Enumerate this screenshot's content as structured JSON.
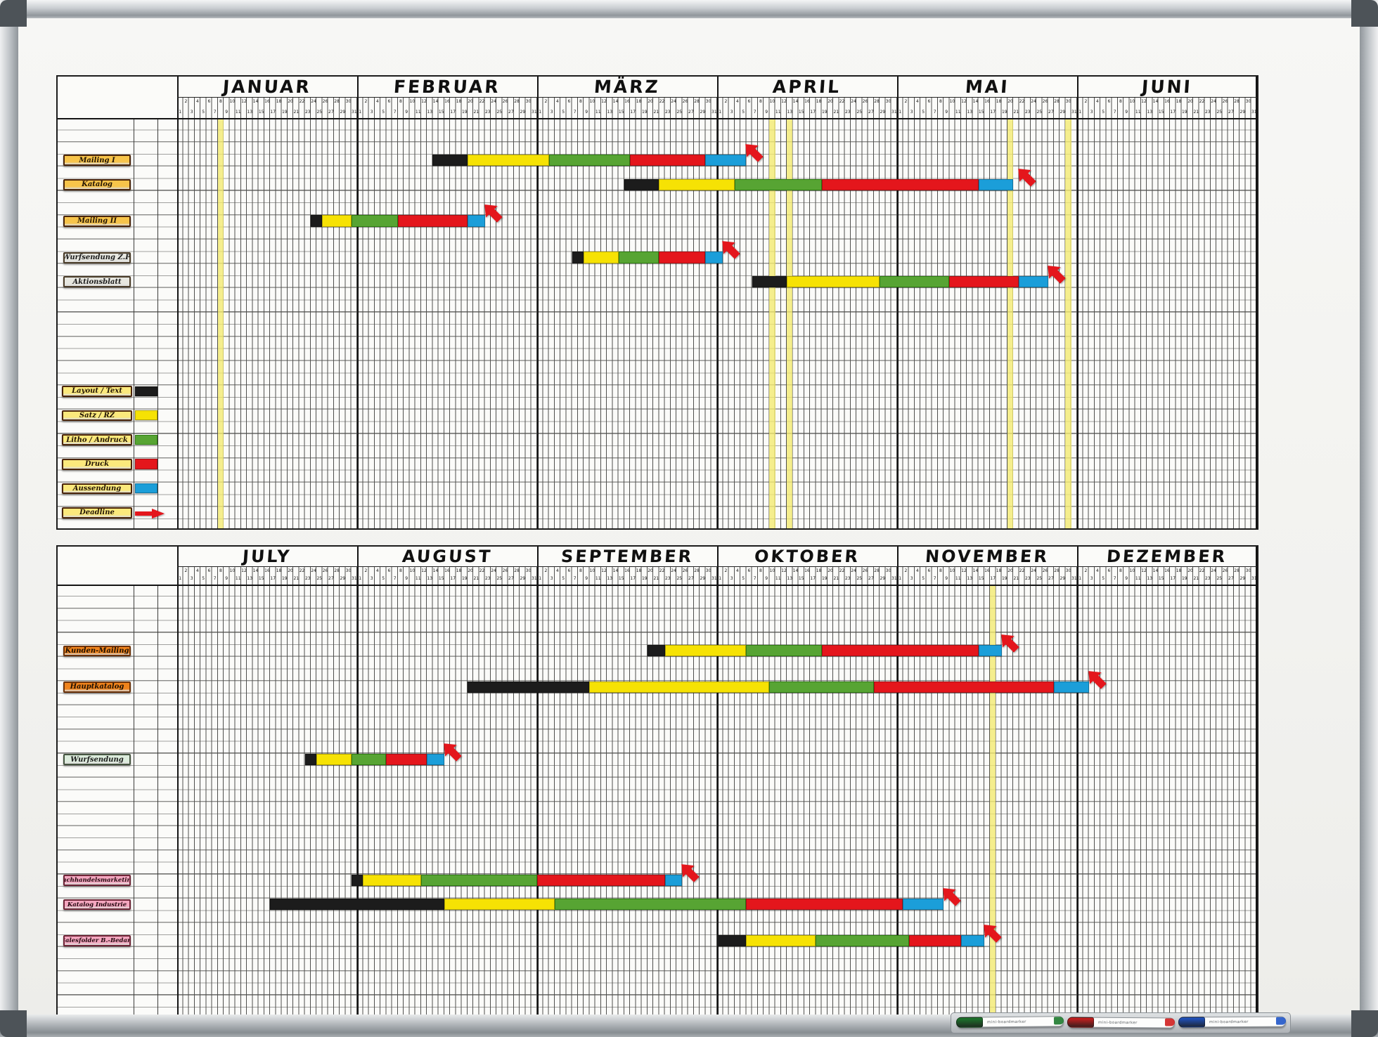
{
  "board": {
    "pens": [
      {
        "accent": "#1d7a2d",
        "label": "mini-boardmarker"
      },
      {
        "accent": "#d01f1f",
        "label": "mini-boardmarker"
      },
      {
        "accent": "#1f55c8",
        "label": "mini-boardmarker"
      }
    ]
  },
  "chart_data": {
    "type": "gantt",
    "description": "Magnetic whiteboard year planner, two half-year Gantt grids; columns are day slots, 31 per month, 0-indexed from the first month of each half",
    "palette": {
      "black": "#1c1c1c",
      "yellow": "#f6e204",
      "green": "#57a433",
      "red": "#e4161c",
      "blue": "#1b9ed9",
      "highlight": "#f3e97d",
      "arrow": "#e4161c"
    },
    "label_colors": {
      "gold": {
        "bg": "#f7c44a",
        "border": "#4a2408",
        "text": "#231505"
      },
      "lightyellow": {
        "bg": "#fbe97c",
        "border": "#4a2408",
        "text": "#231505"
      },
      "gray": {
        "bg": "#e7e7e0",
        "border": "#4a3c28",
        "text": "#1c1c1c"
      },
      "orange": {
        "bg": "#ef831c",
        "border": "#6e3206",
        "text": "#1c1005"
      },
      "mint": {
        "bg": "#dcecdc",
        "border": "#44543f",
        "text": "#1c1c1c"
      },
      "pink": {
        "bg": "#f4a6bf",
        "border": "#6e2436",
        "text": "#230a10"
      }
    },
    "day_numbers": [
      1,
      2,
      3,
      4,
      5,
      6,
      7,
      8,
      9,
      10,
      11,
      12,
      13,
      14,
      15,
      16,
      17,
      18,
      19,
      20,
      21,
      22,
      23,
      24,
      25,
      26,
      27,
      28,
      29,
      30,
      31
    ],
    "charts": [
      {
        "name": "first-half",
        "months": [
          "JANUAR",
          "FEBRUAR",
          "MÄRZ",
          "APRIL",
          "MAI",
          "JUNI"
        ],
        "highlight_cols": [
          7,
          102,
          105,
          143,
          153
        ],
        "rows": [
          {
            "label": "Mailing I",
            "style": "gold",
            "slot": 3,
            "segments": [
              [
                "black",
                44,
                50
              ],
              [
                "yellow",
                50,
                64
              ],
              [
                "green",
                64,
                78
              ],
              [
                "red",
                78,
                91
              ],
              [
                "blue",
                91,
                98
              ]
            ],
            "arrow_col": 98
          },
          {
            "label": "Katalog",
            "style": "gold",
            "slot": 5,
            "segments": [
              [
                "black",
                77,
                83
              ],
              [
                "yellow",
                83,
                96
              ],
              [
                "green",
                96,
                111
              ],
              [
                "red",
                111,
                138
              ],
              [
                "blue",
                138,
                144
              ]
            ],
            "arrow_col": 145
          },
          {
            "label": "Mailing II",
            "style": "gold",
            "slot": 8,
            "segments": [
              [
                "black",
                23,
                25
              ],
              [
                "yellow",
                25,
                30
              ],
              [
                "green",
                30,
                38
              ],
              [
                "red",
                38,
                50
              ],
              [
                "blue",
                50,
                53
              ]
            ],
            "arrow_col": 53
          },
          {
            "label": "Wurfsendung Z.P.",
            "style": "gray",
            "slot": 11,
            "segments": [
              [
                "black",
                68,
                70
              ],
              [
                "yellow",
                70,
                76
              ],
              [
                "green",
                76,
                83
              ],
              [
                "red",
                83,
                91
              ],
              [
                "blue",
                91,
                94
              ]
            ],
            "arrow_col": 94
          },
          {
            "label": "Aktionsblatt",
            "style": "gray",
            "slot": 13,
            "segments": [
              [
                "black",
                99,
                105
              ],
              [
                "yellow",
                105,
                121
              ],
              [
                "green",
                121,
                133
              ],
              [
                "red",
                133,
                145
              ],
              [
                "blue",
                145,
                150
              ]
            ],
            "arrow_col": 150
          }
        ]
      },
      {
        "name": "second-half",
        "months": [
          "JULY",
          "AUGUST",
          "SEPTEMBER",
          "OKTOBER",
          "NOVEMBER",
          "DEZEMBER"
        ],
        "highlight_cols": [
          140
        ],
        "rows": [
          {
            "label": "Kunden-Mailing",
            "style": "orange",
            "slot": 5,
            "segments": [
              [
                "black",
                81,
                84
              ],
              [
                "yellow",
                84,
                98
              ],
              [
                "green",
                98,
                111
              ],
              [
                "red",
                111,
                138
              ],
              [
                "blue",
                138,
                142
              ]
            ],
            "arrow_col": 142
          },
          {
            "label": "Hauptkatalog",
            "style": "orange",
            "slot": 8,
            "segments": [
              [
                "black",
                50,
                71
              ],
              [
                "yellow",
                71,
                102
              ],
              [
                "green",
                102,
                120
              ],
              [
                "red",
                120,
                151
              ],
              [
                "blue",
                151,
                157
              ]
            ],
            "arrow_col": 157
          },
          {
            "label": "Wurfsendung",
            "style": "mint",
            "slot": 14,
            "segments": [
              [
                "black",
                22,
                24
              ],
              [
                "yellow",
                24,
                30
              ],
              [
                "green",
                30,
                36
              ],
              [
                "red",
                36,
                43
              ],
              [
                "blue",
                43,
                46
              ]
            ],
            "arrow_col": 46
          },
          {
            "label": "Fachhandelsmarketing",
            "style": "pink",
            "slot": 24,
            "segments": [
              [
                "black",
                30,
                32
              ],
              [
                "yellow",
                32,
                42
              ],
              [
                "green",
                42,
                62
              ],
              [
                "red",
                62,
                84
              ],
              [
                "blue",
                84,
                87
              ]
            ],
            "arrow_col": 87
          },
          {
            "label": "Katalog Industrie",
            "style": "pink",
            "slot": 26,
            "segments": [
              [
                "black",
                16,
                46
              ],
              [
                "yellow",
                46,
                65
              ],
              [
                "green",
                65,
                98
              ],
              [
                "red",
                98,
                125
              ],
              [
                "blue",
                125,
                132
              ]
            ],
            "arrow_col": 132
          },
          {
            "label": "Salesfolder B.-Bedarf",
            "style": "pink",
            "slot": 29,
            "segments": [
              [
                "black",
                93,
                98
              ],
              [
                "yellow",
                98,
                110
              ],
              [
                "green",
                110,
                126
              ],
              [
                "red",
                126,
                135
              ],
              [
                "blue",
                135,
                139
              ]
            ],
            "arrow_col": 139
          }
        ]
      }
    ],
    "legend": [
      {
        "label": "Layout / Text",
        "chip": "black",
        "slot": 22
      },
      {
        "label": "Satz / RZ",
        "chip": "yellow",
        "slot": 24
      },
      {
        "label": "Litho / Andruck",
        "chip": "green",
        "slot": 26
      },
      {
        "label": "Druck",
        "chip": "red",
        "slot": 28
      },
      {
        "label": "Aussendung",
        "chip": "blue",
        "slot": 30
      },
      {
        "label": "Deadline",
        "chip": "arrow",
        "slot": 32
      }
    ]
  }
}
